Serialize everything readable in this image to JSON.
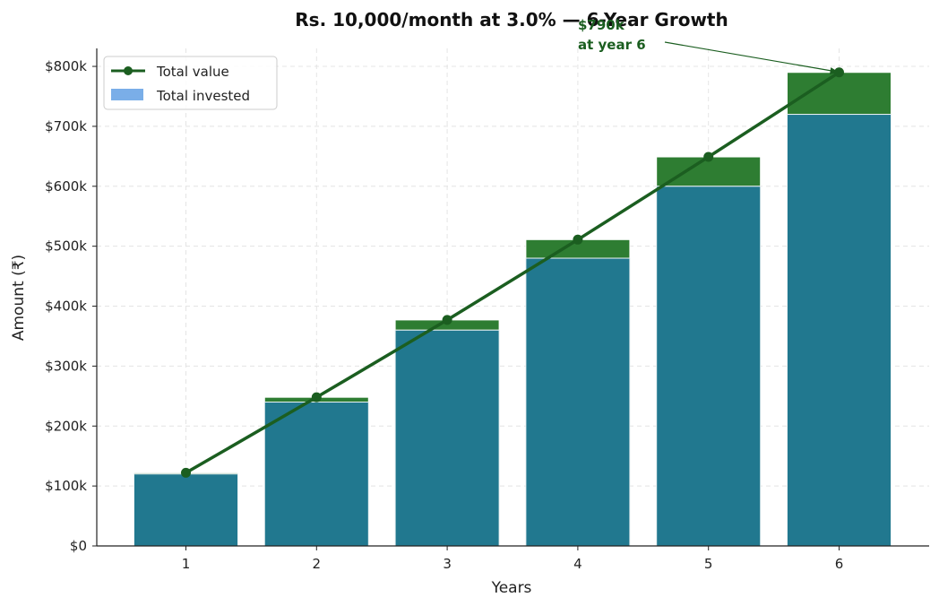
{
  "chart_data": {
    "type": "bar",
    "title": "Rs. 10,000/month at 3.0% — 6-Year Growth",
    "xlabel": "Years",
    "ylabel": "Amount (₹)",
    "categories": [
      "1",
      "2",
      "3",
      "4",
      "5",
      "6"
    ],
    "series": [
      {
        "name": "Total invested",
        "kind": "bar",
        "values": [
          120000,
          240000,
          360000,
          480000,
          600000,
          720000
        ]
      },
      {
        "name": "Total value",
        "kind": "line",
        "values": [
          122000,
          248000,
          377000,
          511000,
          649000,
          790000
        ]
      }
    ],
    "ylim": [
      0,
      830000
    ],
    "yticks": [
      0,
      100000,
      200000,
      300000,
      400000,
      500000,
      600000,
      700000,
      800000
    ],
    "ytick_labels": [
      "$0",
      "$100k",
      "$200k",
      "$300k",
      "$400k",
      "$500k",
      "$600k",
      "$700k",
      "$800k"
    ],
    "grid": true,
    "legend_position": "top-left",
    "annotation": {
      "line1": "$790k",
      "line2": "at year 6",
      "category": "6",
      "value": 790000
    },
    "colors": {
      "invested_bar": "#21788f",
      "growth_bar": "#2e7d32",
      "line": "#1b5e20",
      "legend_invested": "#7aaee8",
      "annotation": "#1b5e20"
    }
  }
}
